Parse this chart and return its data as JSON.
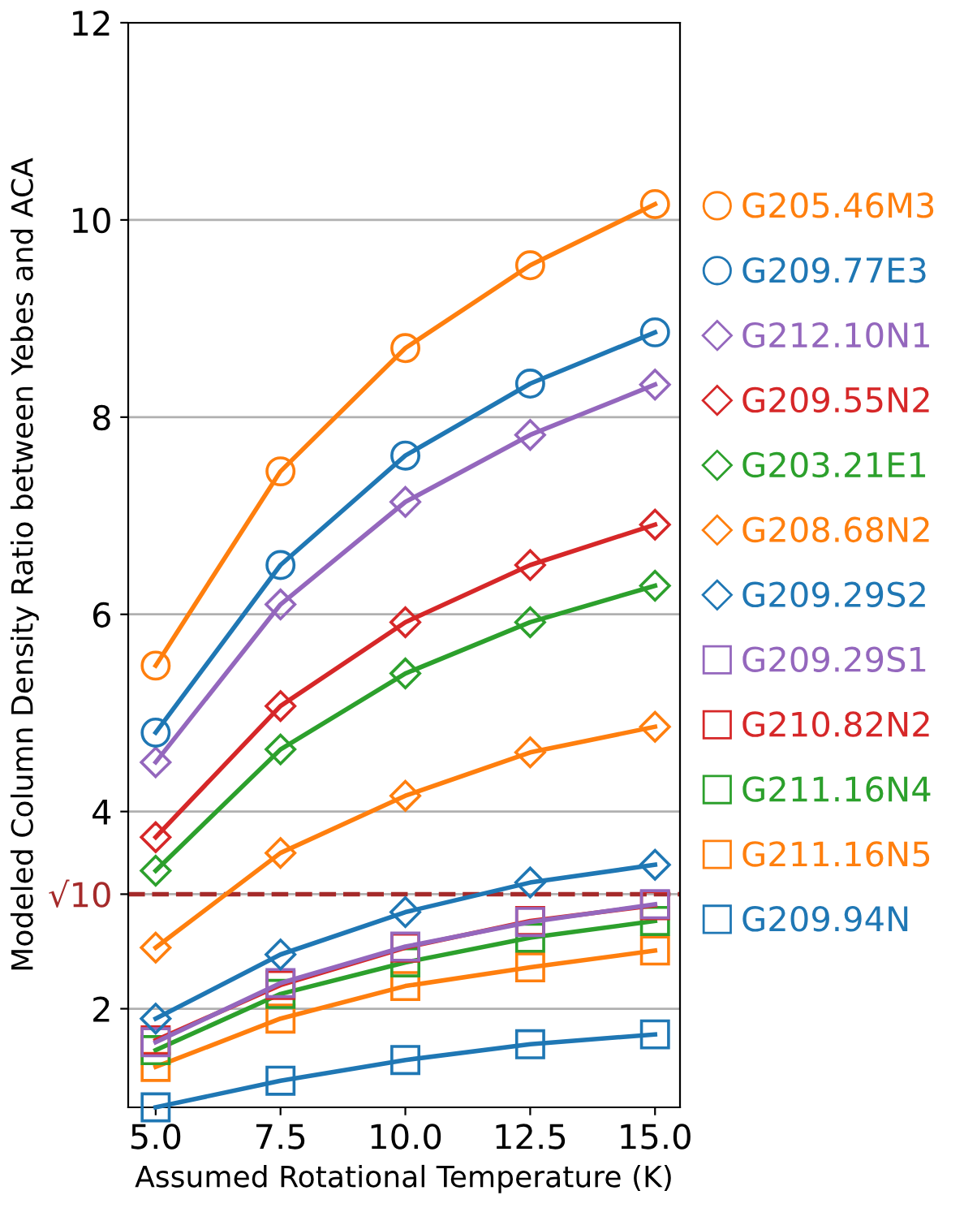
{
  "chart_data": {
    "type": "line",
    "xlabel": "Assumed Rotational Temperature (K)",
    "ylabel": "Modeled Column Density Ratio between Yebes and ACA",
    "x": [
      5.0,
      7.5,
      10.0,
      12.5,
      15.0
    ],
    "xlim": [
      4.45,
      15.5
    ],
    "xticks": [
      {
        "value": 5,
        "label": "5.0"
      },
      7.5,
      {
        "value": 10,
        "label": "10.0"
      },
      12.5,
      {
        "value": 15,
        "label": "15.0"
      }
    ],
    "ylim": [
      1,
      12
    ],
    "yticks": [
      2,
      4,
      6,
      8,
      10,
      12
    ],
    "grid": "y",
    "legend": "right",
    "ref_lines": [
      {
        "axis": "y",
        "value": 3.162,
        "label": "√10",
        "color": "#a52a2a",
        "line_style": "dashed"
      }
    ],
    "series": [
      {
        "name": "G205.46M3",
        "color": "#ff7f0e",
        "marker": "circle",
        "values": [
          5.48,
          7.45,
          8.7,
          9.54,
          10.16
        ]
      },
      {
        "name": "G209.77E3",
        "color": "#1f77b4",
        "marker": "circle",
        "values": [
          4.8,
          6.5,
          7.61,
          8.34,
          8.86
        ]
      },
      {
        "name": "G212.10N1",
        "color": "#9467bd",
        "marker": "diamond",
        "values": [
          4.5,
          6.1,
          7.14,
          7.82,
          8.33
        ]
      },
      {
        "name": "G209.55N2",
        "color": "#d62728",
        "marker": "diamond",
        "values": [
          3.74,
          5.07,
          5.92,
          6.5,
          6.91
        ]
      },
      {
        "name": "G203.21E1",
        "color": "#2ca02c",
        "marker": "diamond",
        "values": [
          3.4,
          4.63,
          5.4,
          5.92,
          6.29
        ]
      },
      {
        "name": "G208.68N2",
        "color": "#ff7f0e",
        "marker": "diamond",
        "values": [
          2.62,
          3.58,
          4.16,
          4.6,
          4.86
        ]
      },
      {
        "name": "G209.29S2",
        "color": "#1f77b4",
        "marker": "diamond",
        "values": [
          1.9,
          2.55,
          2.98,
          3.28,
          3.46
        ]
      },
      {
        "name": "G209.29S1",
        "color": "#9467bd",
        "marker": "square",
        "values": [
          1.66,
          2.26,
          2.63,
          2.88,
          3.06
        ]
      },
      {
        "name": "G210.82N2",
        "color": "#d62728",
        "marker": "square",
        "values": [
          1.68,
          2.24,
          2.62,
          2.89,
          3.05
        ]
      },
      {
        "name": "G211.16N4",
        "color": "#2ca02c",
        "marker": "square",
        "values": [
          1.58,
          2.15,
          2.47,
          2.72,
          2.89
        ]
      },
      {
        "name": "G211.16N5",
        "color": "#ff7f0e",
        "marker": "square",
        "values": [
          1.41,
          1.9,
          2.23,
          2.42,
          2.59
        ]
      },
      {
        "name": "G209.94N",
        "color": "#1f77b4",
        "marker": "square",
        "values": [
          1.0,
          1.27,
          1.48,
          1.64,
          1.74
        ]
      }
    ]
  }
}
